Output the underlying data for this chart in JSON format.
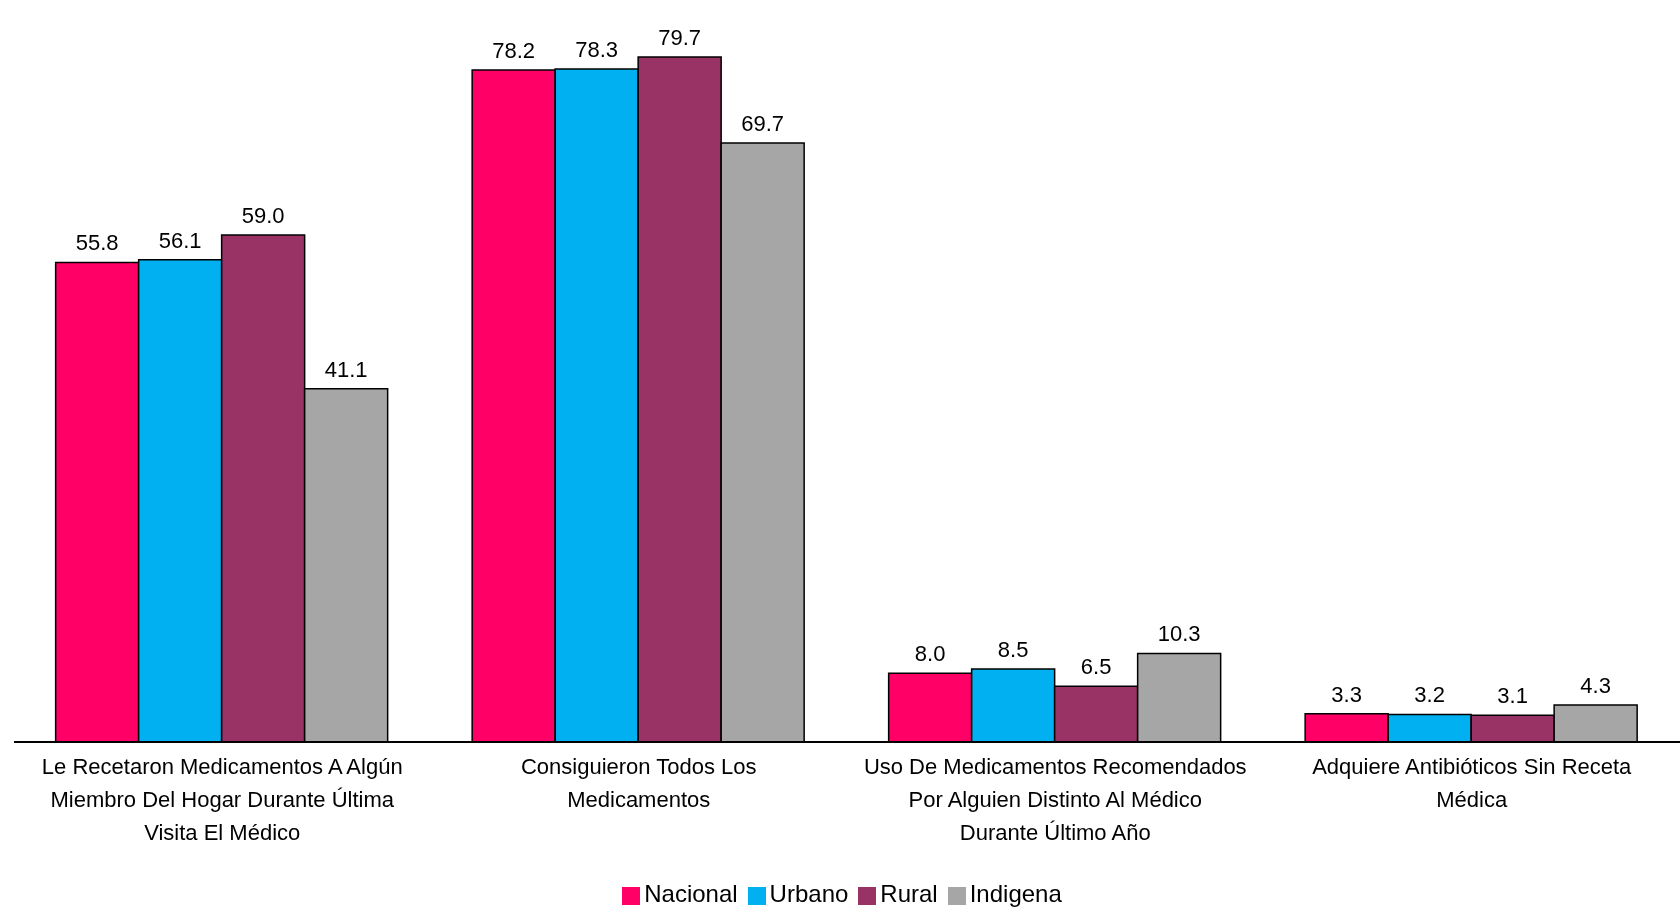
{
  "chart_data": {
    "type": "bar",
    "categories": [
      "Le Recetaron Medicamentos A Algún Miembro Del Hogar Durante Última Visita El Médico",
      "Consiguieron Todos Los Medicamentos",
      "Uso De Medicamentos Recomendados Por Alguien Distinto Al Médico Durante Último Año",
      "Adquiere Antibióticos Sin Receta Médica"
    ],
    "series": [
      {
        "name": "Nacional",
        "color": "#ff0066",
        "values": [
          55.8,
          78.2,
          8.0,
          3.3
        ],
        "value_labels": [
          "55.8",
          "78.2",
          "8.0",
          "3.3"
        ]
      },
      {
        "name": "Urbano",
        "color": "#00b0f0",
        "values": [
          56.1,
          78.3,
          8.5,
          3.2
        ],
        "value_labels": [
          "56.1",
          "78.3",
          "8.5",
          "3.2"
        ]
      },
      {
        "name": "Rural",
        "color": "#993366",
        "values": [
          59.0,
          79.7,
          6.5,
          3.1
        ],
        "value_labels": [
          "59.0",
          "79.7",
          "6.5",
          "3.1"
        ]
      },
      {
        "name": "Indigena",
        "color": "#a6a6a6",
        "values": [
          41.1,
          69.7,
          10.3,
          4.3
        ],
        "value_labels": [
          "41.1",
          "69.7",
          "10.3",
          "4.3"
        ]
      }
    ],
    "legend": "bottom",
    "grid": false
  }
}
